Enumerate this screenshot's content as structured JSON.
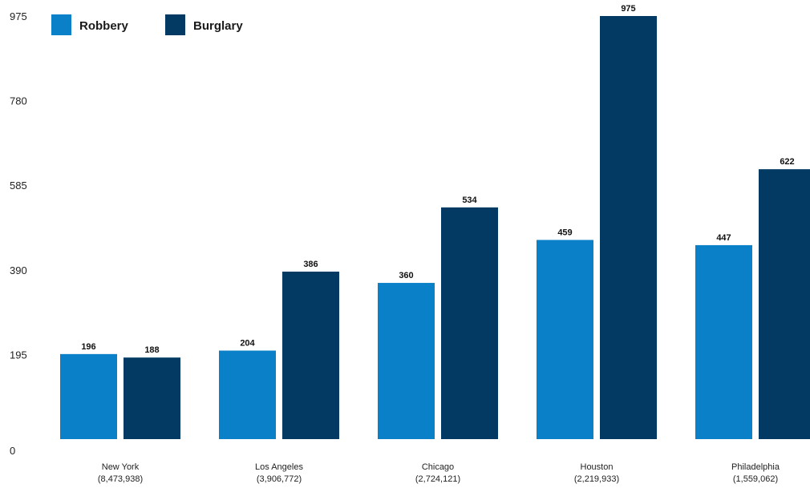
{
  "chart_data": {
    "type": "bar",
    "title": "",
    "xlabel": "",
    "ylabel": "",
    "ylim": [
      0,
      975
    ],
    "yticks": [
      0,
      195,
      390,
      585,
      780,
      975
    ],
    "grid": false,
    "legend_position": "top-left",
    "categories": [
      "New York",
      "Los Angeles",
      "Chicago",
      "Houston",
      "Philadelphia"
    ],
    "category_sublabels": [
      "(8,473,938)",
      "(3,906,772)",
      "(2,724,121)",
      "(2,219,933)",
      "(1,559,062)"
    ],
    "series": [
      {
        "name": "Robbery",
        "color": "#0a80c8",
        "values": [
          196,
          204,
          360,
          459,
          447
        ]
      },
      {
        "name": "Burglary",
        "color": "#023a63",
        "values": [
          188,
          386,
          534,
          975,
          622
        ]
      }
    ]
  }
}
